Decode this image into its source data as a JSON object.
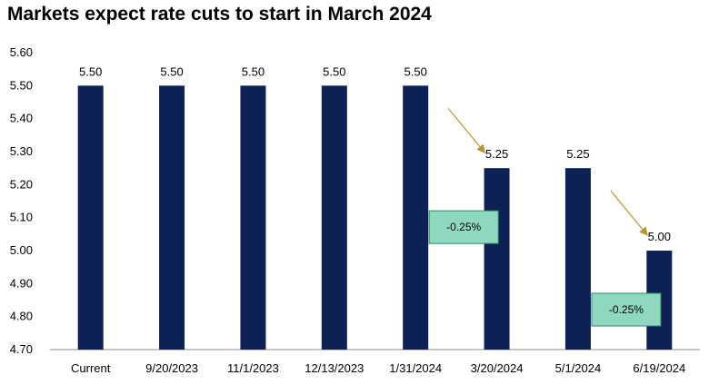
{
  "chart_data": {
    "type": "bar",
    "title": "Markets expect rate cuts to start in March 2024",
    "xlabel": "",
    "ylabel": "",
    "categories": [
      "Current",
      "9/20/2023",
      "11/1/2023",
      "12/13/2023",
      "1/31/2024",
      "3/20/2024",
      "5/1/2024",
      "6/19/2024"
    ],
    "values": [
      5.5,
      5.5,
      5.5,
      5.5,
      5.5,
      5.25,
      5.25,
      5.0
    ],
    "data_labels": [
      "5.50",
      "5.50",
      "5.50",
      "5.50",
      "5.50",
      "5.25",
      "5.25",
      "5.00"
    ],
    "ylim": [
      4.7,
      5.6
    ],
    "yticks": [
      "4.70",
      "4.80",
      "4.90",
      "5.00",
      "5.10",
      "5.20",
      "5.30",
      "5.40",
      "5.50",
      "5.60"
    ],
    "grid": false,
    "legend": "none",
    "bar_color": "#0d2155",
    "annotations": [
      {
        "text": "-0.25%",
        "from_index": 4,
        "to_index": 5,
        "box_color": "#8fd8c0",
        "arrow_color": "#b8962e"
      },
      {
        "text": "-0.25%",
        "from_index": 6,
        "to_index": 7,
        "box_color": "#8fd8c0",
        "arrow_color": "#b8962e"
      }
    ]
  }
}
